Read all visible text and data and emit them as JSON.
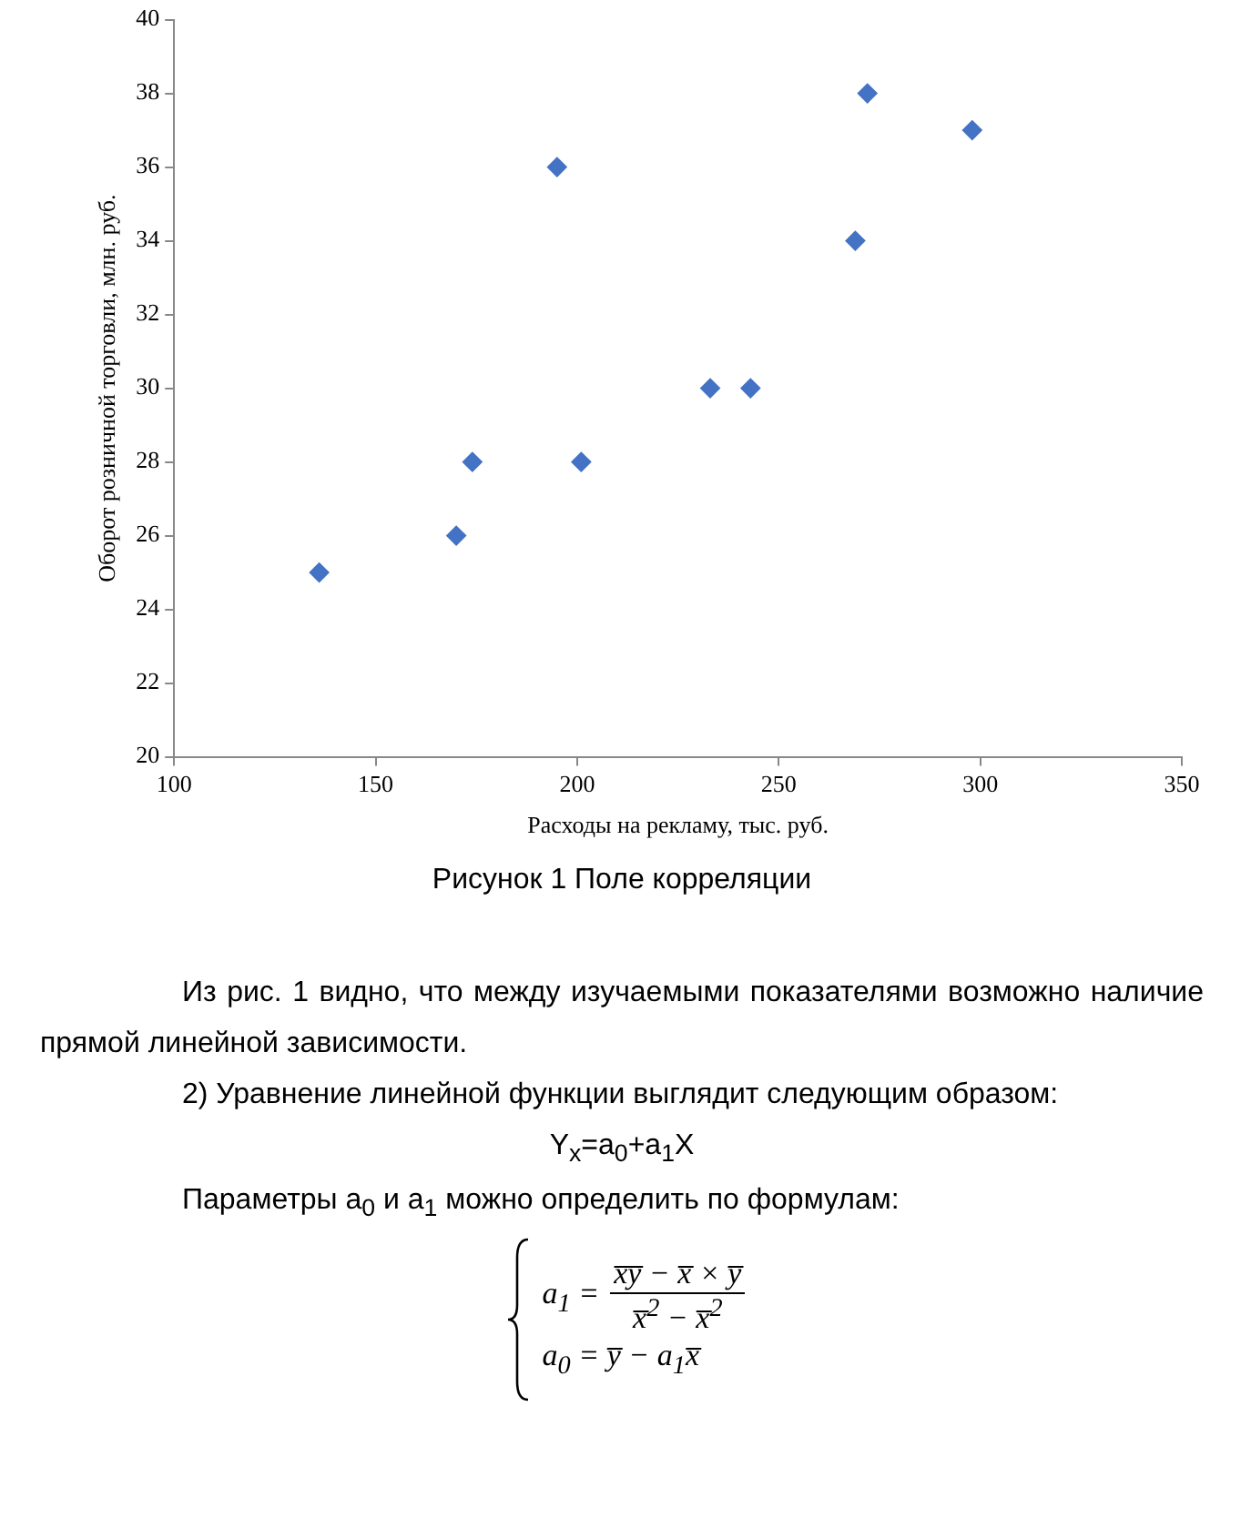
{
  "chart_data": {
    "type": "scatter",
    "xlabel": "Расходы на рекламу, тыс. руб.",
    "ylabel": "Оборот розничной торговли, млн. руб.",
    "x": [
      136,
      170,
      174,
      195,
      201,
      233,
      243,
      269,
      272,
      298
    ],
    "values": [
      25,
      26,
      28,
      36,
      28,
      30,
      30,
      34,
      38,
      37
    ],
    "color": "#4472c4",
    "marker": "diamond",
    "grid": false,
    "legend": false,
    "xlim": [
      100,
      350
    ],
    "xticks": [
      100,
      150,
      200,
      250,
      300,
      350
    ],
    "ylim": [
      20,
      40
    ],
    "yticks": [
      20,
      22,
      24,
      26,
      28,
      30,
      32,
      34,
      36,
      38,
      40
    ],
    "annotations": [
      "Рисунок 1 Поле корреляции",
      "Из рис. 1 видно, что между изучаемыми показателями возможно наличие прямой линейной зависимости.",
      "2) Уравнение линейной функции выглядит следующим образом:",
      "Y$_{x}$=a$_{0}$+a$_{1}$X",
      "Параметры a$_{0}$ и a$_{1}$ можно определить по формулам:",
      "a$_{1}$ =",
      "x̅y̅ − x̅ × y̅",
      "x̅$^{2}$ − x̅$^{2}$",
      "a$_{0}$ = y̅ − a$_{1}$x̅"
    ]
  }
}
